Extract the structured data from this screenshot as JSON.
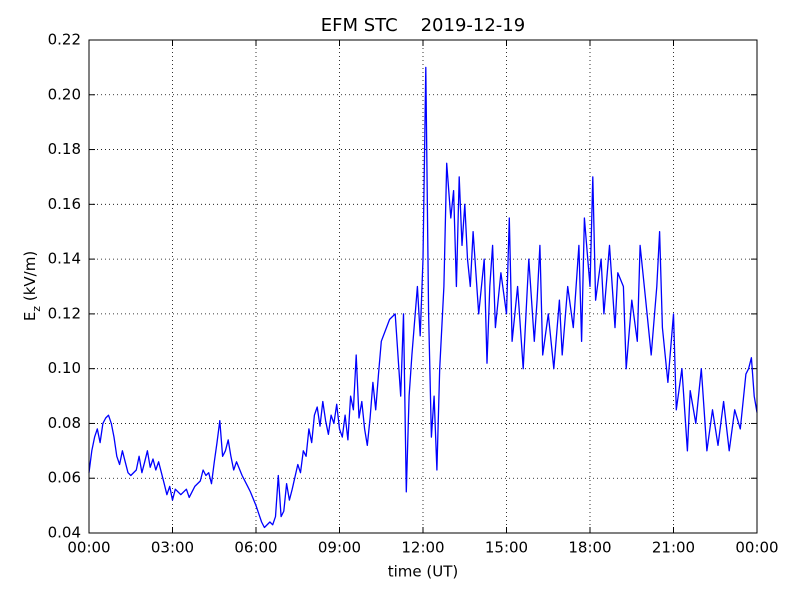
{
  "chart_data": {
    "type": "line",
    "title": "EFM STC    2019-12-19",
    "xlabel": "time (UT)",
    "ylabel": {
      "base": "E",
      "sub": "z",
      "unit": " (kV/m)"
    },
    "xlim": [
      0,
      24
    ],
    "xticks": [
      {
        "value": 0,
        "label": "00:00"
      },
      {
        "value": 3,
        "label": "03:00"
      },
      {
        "value": 6,
        "label": "06:00"
      },
      {
        "value": 9,
        "label": "09:00"
      },
      {
        "value": 12,
        "label": "12:00"
      },
      {
        "value": 15,
        "label": "15:00"
      },
      {
        "value": 18,
        "label": "18:00"
      },
      {
        "value": 21,
        "label": "21:00"
      },
      {
        "value": 24,
        "label": "00:00"
      }
    ],
    "ylim": [
      0.04,
      0.22
    ],
    "yticks": [
      {
        "value": 0.04,
        "label": "0.04"
      },
      {
        "value": 0.06,
        "label": "0.06"
      },
      {
        "value": 0.08,
        "label": "0.08"
      },
      {
        "value": 0.1,
        "label": "0.10"
      },
      {
        "value": 0.12,
        "label": "0.12"
      },
      {
        "value": 0.14,
        "label": "0.14"
      },
      {
        "value": 0.16,
        "label": "0.16"
      },
      {
        "value": 0.18,
        "label": "0.18"
      },
      {
        "value": 0.2,
        "label": "0.20"
      },
      {
        "value": 0.22,
        "label": "0.22"
      }
    ],
    "grid": true,
    "x": [
      0,
      0.1,
      0.2,
      0.3,
      0.4,
      0.5,
      0.6,
      0.7,
      0.8,
      0.9,
      1.0,
      1.1,
      1.2,
      1.3,
      1.4,
      1.5,
      1.7,
      1.8,
      1.9,
      2.0,
      2.1,
      2.2,
      2.3,
      2.4,
      2.5,
      2.6,
      2.7,
      2.8,
      2.9,
      3.0,
      3.1,
      3.3,
      3.5,
      3.6,
      3.8,
      4.0,
      4.1,
      4.2,
      4.3,
      4.4,
      4.5,
      4.6,
      4.7,
      4.8,
      4.9,
      5.0,
      5.1,
      5.2,
      5.3,
      5.5,
      5.7,
      5.8,
      6.0,
      6.1,
      6.2,
      6.3,
      6.5,
      6.6,
      6.7,
      6.8,
      6.9,
      7.0,
      7.1,
      7.2,
      7.3,
      7.5,
      7.6,
      7.7,
      7.8,
      7.9,
      8.0,
      8.1,
      8.2,
      8.3,
      8.4,
      8.5,
      8.6,
      8.7,
      8.8,
      8.9,
      9.0,
      9.1,
      9.2,
      9.3,
      9.4,
      9.5,
      9.6,
      9.7,
      9.8,
      9.9,
      10.0,
      10.1,
      10.2,
      10.3,
      10.4,
      10.5,
      10.8,
      11.0,
      11.2,
      11.3,
      11.4,
      11.5,
      11.6,
      11.8,
      11.9,
      12.0,
      12.1,
      12.2,
      12.3,
      12.4,
      12.5,
      12.6,
      12.75,
      12.85,
      13.0,
      13.1,
      13.2,
      13.3,
      13.4,
      13.5,
      13.6,
      13.7,
      13.8,
      14.0,
      14.2,
      14.3,
      14.4,
      14.5,
      14.6,
      14.8,
      15.0,
      15.1,
      15.2,
      15.4,
      15.6,
      15.8,
      16.0,
      16.1,
      16.2,
      16.3,
      16.5,
      16.7,
      16.9,
      17.0,
      17.2,
      17.4,
      17.6,
      17.7,
      17.8,
      18.0,
      18.1,
      18.2,
      18.4,
      18.5,
      18.7,
      18.9,
      19.0,
      19.2,
      19.3,
      19.5,
      19.7,
      19.8,
      20.0,
      20.2,
      20.4,
      20.5,
      20.6,
      20.8,
      21.0,
      21.1,
      21.3,
      21.5,
      21.6,
      21.8,
      22.0,
      22.2,
      22.4,
      22.6,
      22.8,
      23.0,
      23.2,
      23.4,
      23.6,
      23.7,
      23.8,
      23.9,
      24.0
    ],
    "series": [
      {
        "name": "Ez",
        "color": "#0000ff",
        "values": [
          0.062,
          0.07,
          0.075,
          0.078,
          0.073,
          0.08,
          0.082,
          0.083,
          0.08,
          0.075,
          0.068,
          0.065,
          0.07,
          0.066,
          0.062,
          0.061,
          0.063,
          0.068,
          0.062,
          0.066,
          0.07,
          0.064,
          0.067,
          0.063,
          0.066,
          0.062,
          0.058,
          0.054,
          0.057,
          0.052,
          0.056,
          0.054,
          0.056,
          0.053,
          0.057,
          0.059,
          0.063,
          0.061,
          0.062,
          0.058,
          0.066,
          0.073,
          0.081,
          0.068,
          0.07,
          0.074,
          0.068,
          0.063,
          0.066,
          0.061,
          0.057,
          0.055,
          0.05,
          0.047,
          0.044,
          0.042,
          0.044,
          0.043,
          0.046,
          0.061,
          0.046,
          0.048,
          0.058,
          0.052,
          0.056,
          0.065,
          0.062,
          0.07,
          0.068,
          0.078,
          0.073,
          0.083,
          0.086,
          0.079,
          0.088,
          0.081,
          0.076,
          0.083,
          0.08,
          0.087,
          0.078,
          0.075,
          0.083,
          0.074,
          0.09,
          0.085,
          0.105,
          0.082,
          0.088,
          0.078,
          0.072,
          0.082,
          0.095,
          0.085,
          0.098,
          0.11,
          0.118,
          0.12,
          0.09,
          0.12,
          0.055,
          0.09,
          0.105,
          0.13,
          0.112,
          0.14,
          0.21,
          0.12,
          0.075,
          0.09,
          0.063,
          0.1,
          0.13,
          0.175,
          0.155,
          0.165,
          0.13,
          0.17,
          0.145,
          0.16,
          0.14,
          0.13,
          0.15,
          0.12,
          0.14,
          0.102,
          0.13,
          0.145,
          0.115,
          0.135,
          0.12,
          0.155,
          0.11,
          0.13,
          0.1,
          0.14,
          0.11,
          0.125,
          0.145,
          0.105,
          0.12,
          0.1,
          0.125,
          0.105,
          0.13,
          0.115,
          0.145,
          0.11,
          0.155,
          0.13,
          0.17,
          0.125,
          0.14,
          0.12,
          0.145,
          0.115,
          0.135,
          0.13,
          0.1,
          0.125,
          0.11,
          0.145,
          0.125,
          0.105,
          0.13,
          0.15,
          0.115,
          0.095,
          0.12,
          0.085,
          0.1,
          0.07,
          0.092,
          0.08,
          0.1,
          0.07,
          0.085,
          0.072,
          0.088,
          0.07,
          0.085,
          0.078,
          0.098,
          0.1,
          0.104,
          0.09,
          0.084
        ]
      }
    ]
  }
}
